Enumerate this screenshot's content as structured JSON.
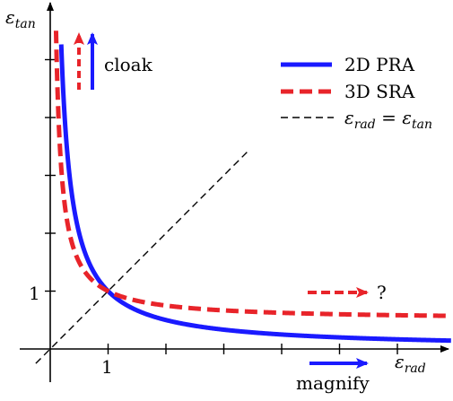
{
  "chart_data": {
    "type": "line",
    "title": "",
    "xlabel": "ε_rad",
    "ylabel": "ε_tan",
    "xlim": [
      -0.25,
      7.05
    ],
    "ylim": [
      -0.35,
      5.0
    ],
    "x_ticks": [
      1,
      2,
      3,
      4,
      5,
      6
    ],
    "x_tick_labels": [
      "1",
      "",
      "",
      "",
      "",
      ""
    ],
    "y_ticks": [
      1,
      2,
      3,
      4,
      5
    ],
    "y_tick_labels": [
      "1",
      "",
      "",
      "",
      ""
    ],
    "series": [
      {
        "name": "2D PRA",
        "color": "#1a1aff",
        "style": "solid",
        "formula": "y = 1/x",
        "x": [
          0.2,
          0.25,
          0.3,
          0.4,
          0.5,
          0.7,
          1.0,
          1.5,
          2.0,
          3.0,
          4.0,
          5.0,
          6.0,
          7.0
        ],
        "y": [
          5.0,
          4.0,
          3.33,
          2.5,
          2.0,
          1.43,
          1.0,
          0.67,
          0.5,
          0.33,
          0.25,
          0.2,
          0.17,
          0.14
        ]
      },
      {
        "name": "3D SRA",
        "color": "#e8242a",
        "style": "dashed",
        "formula": "y = 1/(2x) + 1/2",
        "x": [
          0.11,
          0.15,
          0.2,
          0.3,
          0.4,
          0.5,
          0.7,
          1.0,
          1.5,
          2.0,
          3.0,
          4.0,
          5.0,
          6.0,
          7.0
        ],
        "y": [
          5.0,
          3.83,
          3.0,
          2.17,
          1.75,
          1.5,
          1.21,
          1.0,
          0.83,
          0.75,
          0.67,
          0.63,
          0.6,
          0.58,
          0.57
        ]
      },
      {
        "name": "ε_rad = ε_tan",
        "color": "#000000",
        "style": "dashed-thin",
        "formula": "y = x",
        "x": [
          -0.25,
          3.45
        ],
        "y": [
          -0.25,
          3.45
        ]
      }
    ],
    "legend_position": "top-right",
    "annotations": {
      "cloak": "cloak",
      "magnify": "magnify",
      "question": "?"
    }
  }
}
